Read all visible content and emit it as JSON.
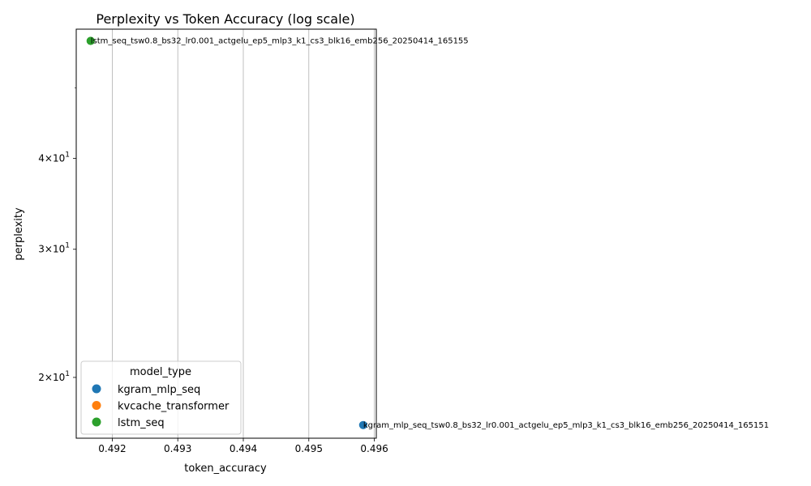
{
  "chart_data": {
    "type": "scatter",
    "title": "Perplexity vs Token Accuracy (log scale)",
    "xlabel": "token_accuracy",
    "ylabel": "perplexity",
    "xlim": [
      0.49145,
      0.49603
    ],
    "ylim": [
      16.5,
      60.2
    ],
    "yscale": "log",
    "grid": "x",
    "x_ticks": [
      0.492,
      0.493,
      0.494,
      0.495,
      0.496
    ],
    "x_tick_labels": [
      "0.492",
      "0.493",
      "0.494",
      "0.495",
      "0.496"
    ],
    "y_major_ticks": [
      {
        "value": 20,
        "base": "2",
        "exp": "1"
      },
      {
        "value": 30,
        "base": "3",
        "exp": "1"
      },
      {
        "value": 40,
        "base": "4",
        "exp": "1"
      }
    ],
    "y_minor_ticks": [
      50
    ],
    "legend": {
      "title": "model_type",
      "placement": "lower-left",
      "entries": [
        {
          "name": "kgram_mlp_seq",
          "color": "#1f77b4"
        },
        {
          "name": "kvcache_transformer",
          "color": "#ff7f0e"
        },
        {
          "name": "lstm_seq",
          "color": "#2ca02c"
        }
      ]
    },
    "points": [
      {
        "series": "kgram_mlp_seq",
        "x": 0.49583,
        "y": 17.2,
        "color": "#1f77b4",
        "label": "kgram_mlp_seq_tsw0.8_bs32_lr0.001_actgelu_ep5_mlp3_k1_cs3_blk16_emb256_20250414_165151"
      },
      {
        "series": "lstm_seq",
        "x": 0.49167,
        "y": 58.0,
        "color": "#2ca02c",
        "label": "lstm_seq_tsw0.8_bs32_lr0.001_actgelu_ep5_mlp3_k1_cs3_blk16_emb256_20250414_165155"
      }
    ]
  }
}
